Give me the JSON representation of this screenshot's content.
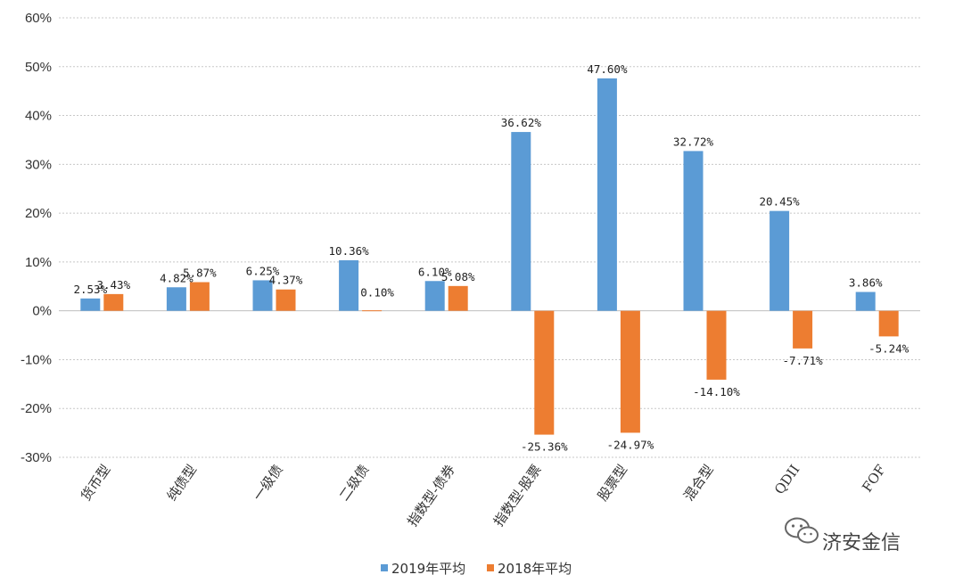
{
  "chart_data": {
    "type": "bar",
    "categories": [
      "货币型",
      "纯债型",
      "一级债",
      "二级债",
      "指数型-债券",
      "指数型-股票",
      "股票型",
      "混合型",
      "QDII",
      "FOF"
    ],
    "series": [
      {
        "name": "2019年平均",
        "values": [
          2.53,
          4.82,
          6.25,
          10.36,
          6.1,
          36.62,
          47.6,
          32.72,
          20.45,
          3.86
        ],
        "labels": [
          "2.53%",
          "4.82%",
          "6.25%",
          "10.36%",
          "6.10%",
          "36.62%",
          "47.60%",
          "32.72%",
          "20.45%",
          "3.86%"
        ],
        "color": "#5b9bd5"
      },
      {
        "name": "2018年平均",
        "values": [
          3.43,
          5.87,
          4.37,
          0.1,
          5.08,
          -25.36,
          -24.97,
          -14.1,
          -7.71,
          -5.24
        ],
        "labels": [
          "3.43%",
          "5.87%",
          "4.37%",
          "0.10%",
          "5.08%",
          "-25.36%",
          "-24.97%",
          "-14.10%",
          "-7.71%",
          "-5.24%"
        ],
        "color": "#ed7d31"
      }
    ],
    "yticks": [
      "60%",
      "50%",
      "40%",
      "30%",
      "20%",
      "10%",
      "0%",
      "-10%",
      "-20%",
      "-30%"
    ],
    "ylim": [
      -30,
      60
    ],
    "title": "",
    "xlabel": "",
    "ylabel": "",
    "grid": true,
    "legend_position": "bottom-center"
  },
  "watermark": {
    "text": "济安金信",
    "icon": "wechat-icon"
  }
}
